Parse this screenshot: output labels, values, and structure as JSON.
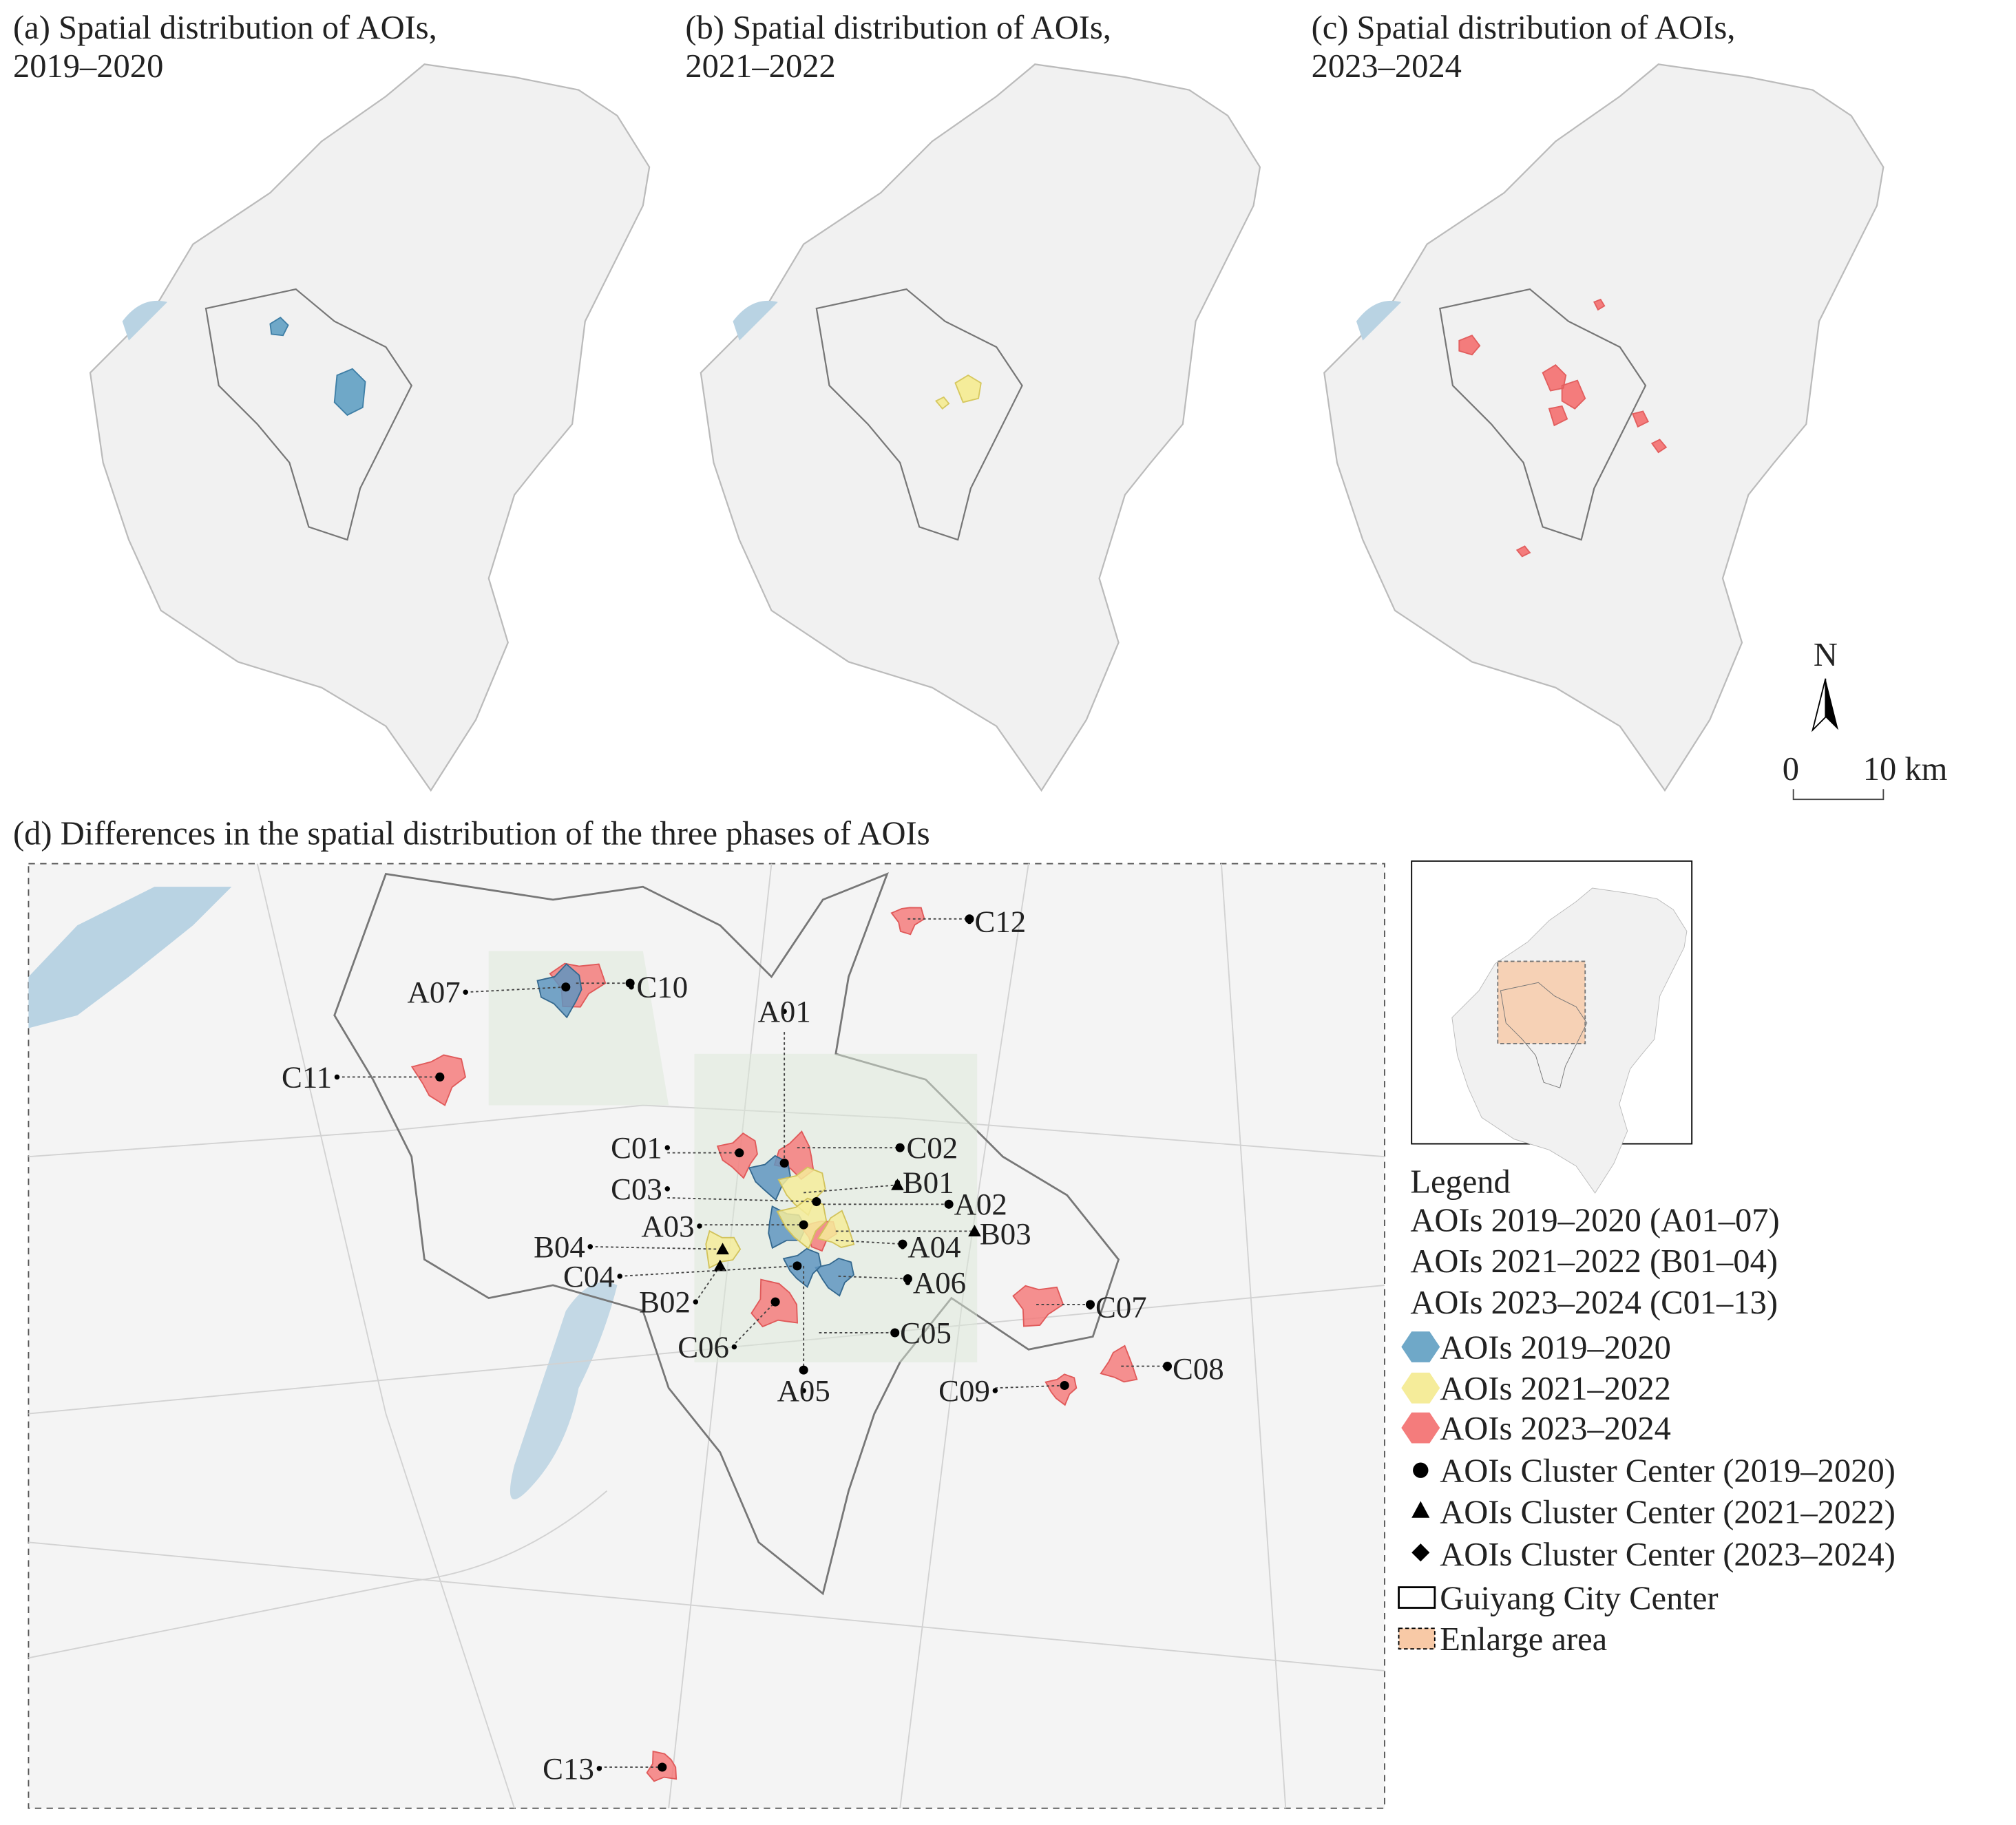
{
  "panels": [
    {
      "title": "(a) Spatial distribution of AOIs,",
      "subtitle": "2019–2020"
    },
    {
      "title": "(b) Spatial distribution of AOIs,",
      "subtitle": "2021–2022"
    },
    {
      "title": "(c) Spatial distribution of AOIs,",
      "subtitle": "2023–2024"
    }
  ],
  "scale_bar": {
    "north": "N",
    "start": "0",
    "end": "10 km"
  },
  "main": {
    "title": "(d) Differences in the spatial distribution of the three phases of AOIs",
    "labels": [
      "A01",
      "A02",
      "A03",
      "A04",
      "A05",
      "A06",
      "A07",
      "B01",
      "B02",
      "B03",
      "B04",
      "C01",
      "C02",
      "C03",
      "C04",
      "C05",
      "C06",
      "C07",
      "C08",
      "C09",
      "C10",
      "C11",
      "C12",
      "C13"
    ]
  },
  "legend": {
    "title": "Legend",
    "lines": [
      "AOIs 2019–2020 (A01–07)",
      "AOIs 2021–2022 (B01–04)",
      "AOIs 2023–2024 (C01–13)"
    ],
    "items": [
      "AOIs 2019–2020",
      "AOIs 2021–2022",
      "AOIs 2023–2024",
      "AOIs Cluster Center (2019–2020)",
      "AOIs Cluster Center (2021–2022)",
      "AOIs Cluster Center (2023–2024)",
      "Guiyang City Center",
      "Enlarge area"
    ]
  }
}
